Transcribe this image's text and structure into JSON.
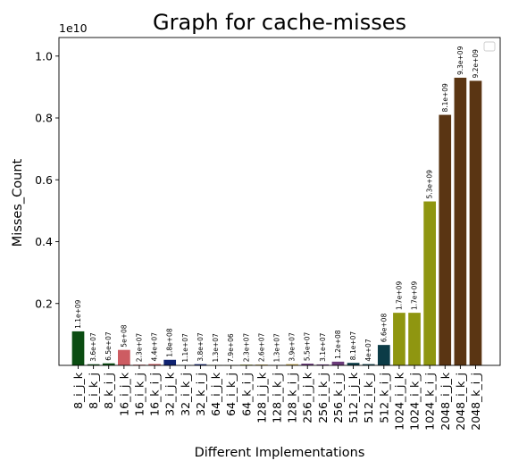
{
  "chart_data": {
    "type": "bar",
    "title": "Graph for cache-misses",
    "xlabel": "Different Implementations",
    "ylabel": "Misses_Count",
    "y_multiplier": "1e10",
    "ylim": [
      0,
      10600000000.0
    ],
    "yticks": [
      {
        "value": 2000000000.0,
        "label": "0.2"
      },
      {
        "value": 4000000000.0,
        "label": "0.4"
      },
      {
        "value": 6000000000.0,
        "label": "0.6"
      },
      {
        "value": 8000000000.0,
        "label": "0.8"
      },
      {
        "value": 10000000000.0,
        "label": "1.0"
      }
    ],
    "grid": false,
    "legend": "top-right, empty",
    "categories": [
      "8_i_j_k",
      "8_i_k_j",
      "8_k_i_j",
      "16_i_j_k",
      "16_i_k_j",
      "16_k_i_j",
      "32_i_j_k",
      "32_i_k_j",
      "32_k_i_j",
      "64_i_j_k",
      "64_i_k_j",
      "64_k_i_j",
      "128_i_j_k",
      "128_i_k_j",
      "128_k_i_j",
      "256_i_j_k",
      "256_i_k_j",
      "256_k_i_j",
      "512_i_j_k",
      "512_i_k_j",
      "512_k_i_j",
      "1024_i_j_k",
      "1024_i_k_j",
      "1024_k_i_j",
      "2048_i_j_k",
      "2048_i_k_j",
      "2048_k_i_j"
    ],
    "values": [
      1100000000.0,
      36000000.0,
      65000000.0,
      500000000.0,
      23000000.0,
      44000000.0,
      180000000.0,
      11000000.0,
      38000000.0,
      13000000.0,
      7900000.0,
      23000000.0,
      26000000.0,
      13000000.0,
      39000000.0,
      55000000.0,
      31000000.0,
      120000000.0,
      81000000.0,
      40000000.0,
      660000000.0,
      1700000000.0,
      1700000000.0,
      5300000000.0,
      8100000000.0,
      9300000000.0,
      9200000000.0
    ],
    "data_labels": [
      "1.1e+09",
      "3.6e+07",
      "6.5e+07",
      "5e+08",
      "2.3e+07",
      "4.4e+07",
      "1.8e+08",
      "1.1e+07",
      "3.8e+07",
      "1.3e+07",
      "7.9e+06",
      "2.3e+07",
      "2.6e+07",
      "1.3e+07",
      "3.9e+07",
      "5.5e+07",
      "3.1e+07",
      "1.2e+08",
      "8.1e+07",
      "4e+07",
      "6.6e+08",
      "1.7e+09",
      "1.7e+09",
      "5.3e+09",
      "8.1e+09",
      "9.3e+09",
      "9.2e+09"
    ],
    "colors": [
      "#0b4d12",
      "#0b4d12",
      "#0b4d12",
      "#cd5c62",
      "#cd5c62",
      "#cd5c62",
      "#0f2270",
      "#0f2270",
      "#0f2270",
      "#9aa02c",
      "#9aa02c",
      "#9aa02c",
      "#c6a64a",
      "#c6a64a",
      "#c6a64a",
      "#6b3b7a",
      "#6b3b7a",
      "#6b3b7a",
      "#0c3c47",
      "#0c3c47",
      "#0c3c47",
      "#8f9610",
      "#8f9610",
      "#8f9610",
      "#5a3513",
      "#5a3513",
      "#5a3513"
    ]
  }
}
